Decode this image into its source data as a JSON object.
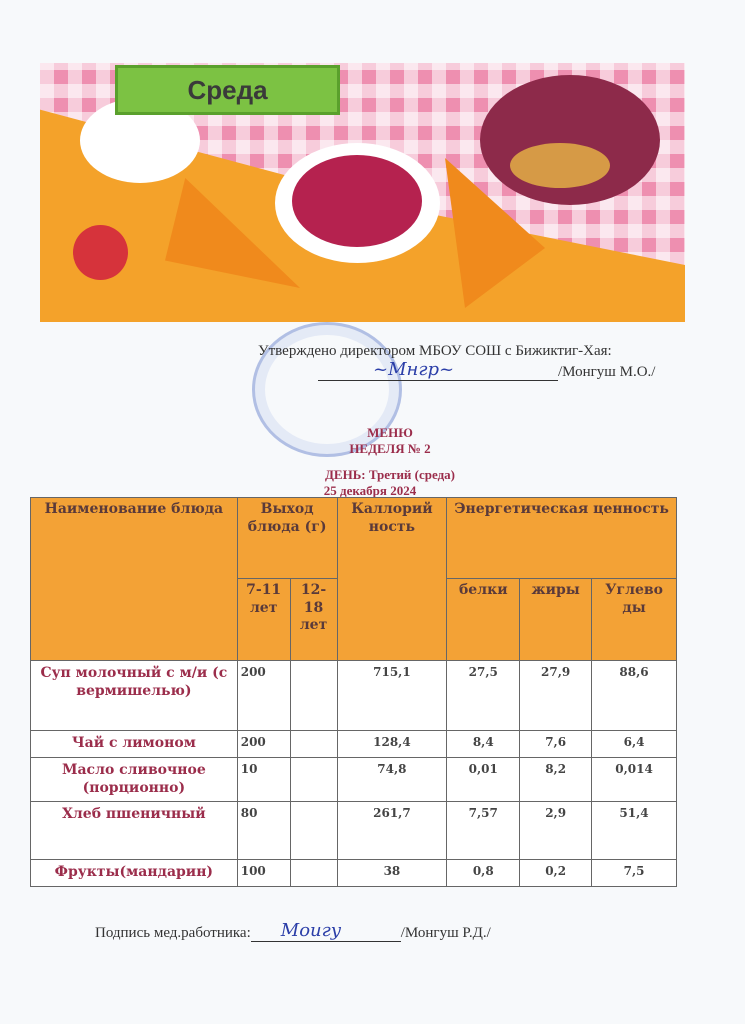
{
  "banner": {
    "title": "Среда"
  },
  "approval": {
    "text": "Утверждено  директором МБОУ СОШ с Бижиктиг-Хая:",
    "name": "/Монгуш М.О./",
    "signature": "Монгуш"
  },
  "heading": {
    "line1": "МЕНЮ",
    "line2": "НЕДЕЛЯ № 2",
    "line3": "ДЕНЬ: Третий (среда)",
    "line4": "25 декабря  2024"
  },
  "table": {
    "headers": {
      "name": "Наименование блюда",
      "output": "Выход блюда (г)",
      "age1": "7-11 лет",
      "age2": "12-18 лет",
      "calories": "Каллорий ность",
      "energy": "Энергетическая ценность",
      "proteins": "белки",
      "fats": "жиры",
      "carbs": "Углево ды"
    },
    "rows": [
      {
        "name": "Суп молочный с м/и (с вермишелью)",
        "age1": "200",
        "age2": "",
        "cal": "715,1",
        "p": "27,5",
        "f": "27,9",
        "c": "88,6"
      },
      {
        "name": "Чай с лимоном",
        "age1": "200",
        "age2": "",
        "cal": "128,4",
        "p": "8,4",
        "f": "7,6",
        "c": "6,4"
      },
      {
        "name": "Масло сливочное (порционно)",
        "age1": "10",
        "age2": "",
        "cal": "74,8",
        "p": "0,01",
        "f": "8,2",
        "c": "0,014"
      },
      {
        "name": "Хлеб пшеничный",
        "age1": "80",
        "age2": "",
        "cal": "261,7",
        "p": "7,57",
        "f": "2,9",
        "c": "51,4"
      },
      {
        "name": "Фрукты(мандарин)",
        "age1": "100",
        "age2": "",
        "cal": "38",
        "p": "0,8",
        "f": "0,2",
        "c": "7,5"
      }
    ]
  },
  "medic": {
    "label": "Подпись мед.работника:",
    "name": "/Монгуш Р.Д./",
    "signature": "Монгуш"
  },
  "colors": {
    "header_bg": "#f3a236",
    "dish_text": "#9b2d4b",
    "banner_green": "#7cc243"
  }
}
